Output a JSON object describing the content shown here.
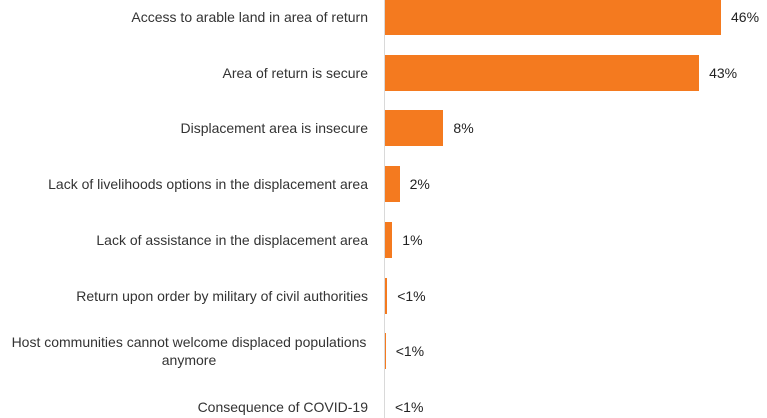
{
  "chart_data": {
    "type": "bar",
    "orientation": "horizontal",
    "categories": [
      "Access to arable land in area of return",
      "Area of return is secure",
      "Displacement area is insecure",
      "Lack of livelihoods options in the displacement area",
      "Lack of assistance in the displacement area",
      "Return upon order by military of civil authorities",
      "Host communities cannot welcome displaced populations anymore",
      "Consequence of COVID-19"
    ],
    "values": [
      46,
      43,
      8,
      2,
      1,
      0.3,
      0.1,
      0
    ],
    "value_labels": [
      "46%",
      "43%",
      "8%",
      "2%",
      "1%",
      "<1%",
      "<1%",
      "<1%"
    ],
    "color": "#f47a1f"
  }
}
